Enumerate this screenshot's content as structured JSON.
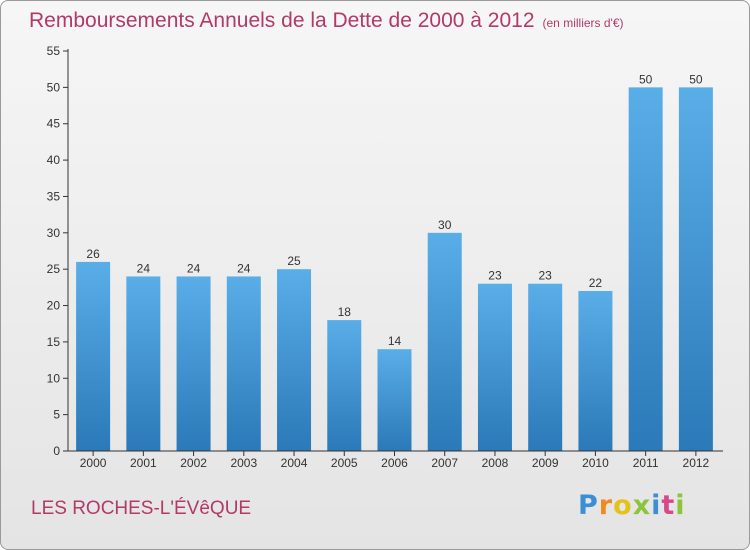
{
  "header": {
    "title": "Remboursements Annuels de la Dette de 2000 à 2012",
    "unit": "(en milliers d'€)"
  },
  "footer": {
    "location": "LES ROCHES-L'ÉVêQUE",
    "logo_text": "Proxiti"
  },
  "colors": {
    "bar_top": "#5aaee8",
    "bar_bottom": "#2b79b8",
    "title": "#b13a67",
    "logo_letters": [
      "#3b8fd2",
      "#f08a1c",
      "#e4c21b",
      "#8cc43c",
      "#3b8fd2",
      "#d64a8a",
      "#8cc43c"
    ]
  },
  "chart_data": {
    "type": "bar",
    "categories": [
      "2000",
      "2001",
      "2002",
      "2003",
      "2004",
      "2005",
      "2006",
      "2007",
      "2008",
      "2009",
      "2010",
      "2011",
      "2012"
    ],
    "values": [
      26,
      24,
      24,
      24,
      25,
      18,
      14,
      30,
      23,
      23,
      22,
      50,
      50
    ],
    "title": "Remboursements Annuels de la Dette de 2000 à 2012",
    "subtitle": "(en milliers d'€)",
    "xlabel": "",
    "ylabel": "",
    "ylim": [
      0,
      55
    ],
    "yticks": [
      0,
      5,
      10,
      15,
      20,
      25,
      30,
      35,
      40,
      45,
      50,
      55
    ],
    "grid": false,
    "data_labels": true
  }
}
